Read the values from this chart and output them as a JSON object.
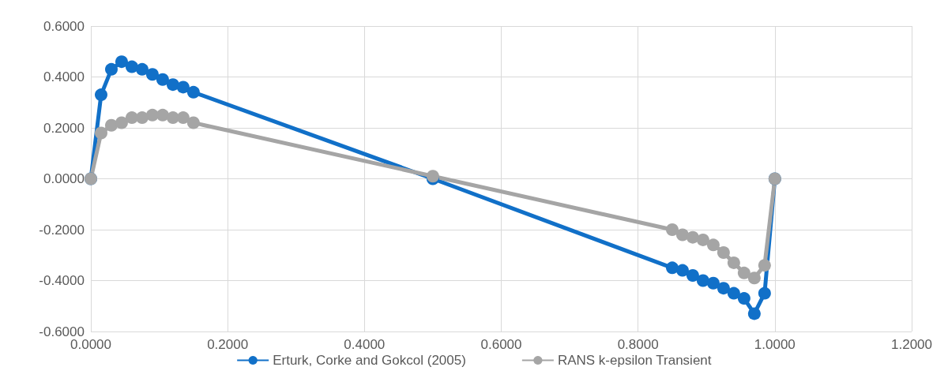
{
  "chart_data": {
    "type": "line",
    "marker": "circle",
    "grid": true,
    "legend": "bottom",
    "xlim": [
      0,
      1.2
    ],
    "xticks": [
      {
        "value": 0,
        "label": "0.0000"
      },
      {
        "value": 0.2,
        "label": "0.2000"
      },
      {
        "value": 0.4,
        "label": "0.4000"
      },
      {
        "value": 0.6,
        "label": "0.6000"
      },
      {
        "value": 0.8,
        "label": "0.8000"
      },
      {
        "value": 1,
        "label": "1.0000"
      },
      {
        "value": 1.2,
        "label": "1.2000"
      }
    ],
    "ylim": [
      -0.6,
      0.6
    ],
    "yticks": [
      {
        "value": -0.6,
        "label": "-0.6000"
      },
      {
        "value": -0.4,
        "label": "-0.4000"
      },
      {
        "value": -0.2,
        "label": "-0.2000"
      },
      {
        "value": 0,
        "label": "0.0000"
      },
      {
        "value": 0.2,
        "label": "0.2000"
      },
      {
        "value": 0.4,
        "label": "0.4000"
      },
      {
        "value": 0.6,
        "label": "0.6000"
      }
    ],
    "series": [
      {
        "name": "Erturk, Corke and Gokcol (2005)",
        "color": "#1170c8",
        "x": [
          0,
          0.015,
          0.03,
          0.045,
          0.06,
          0.075,
          0.09,
          0.105,
          0.12,
          0.135,
          0.15,
          0.5,
          0.85,
          0.865,
          0.88,
          0.895,
          0.91,
          0.925,
          0.94,
          0.955,
          0.97,
          0.985,
          1
        ],
        "values": [
          0,
          0.33,
          0.43,
          0.46,
          0.44,
          0.43,
          0.41,
          0.39,
          0.37,
          0.36,
          0.34,
          0,
          -0.35,
          -0.36,
          -0.38,
          -0.4,
          -0.41,
          -0.43,
          -0.45,
          -0.47,
          -0.53,
          -0.45,
          0
        ]
      },
      {
        "name": "RANS k-epsilon Transient",
        "color": "#a5a5a5",
        "x": [
          0,
          0.015,
          0.03,
          0.045,
          0.06,
          0.075,
          0.09,
          0.105,
          0.12,
          0.135,
          0.15,
          0.5,
          0.85,
          0.865,
          0.88,
          0.895,
          0.91,
          0.925,
          0.94,
          0.955,
          0.97,
          0.985,
          1
        ],
        "values": [
          0,
          0.18,
          0.21,
          0.22,
          0.24,
          0.24,
          0.25,
          0.25,
          0.24,
          0.24,
          0.22,
          0.01,
          -0.2,
          -0.22,
          -0.23,
          -0.24,
          -0.26,
          -0.29,
          -0.33,
          -0.37,
          -0.39,
          -0.34,
          0
        ]
      }
    ]
  }
}
